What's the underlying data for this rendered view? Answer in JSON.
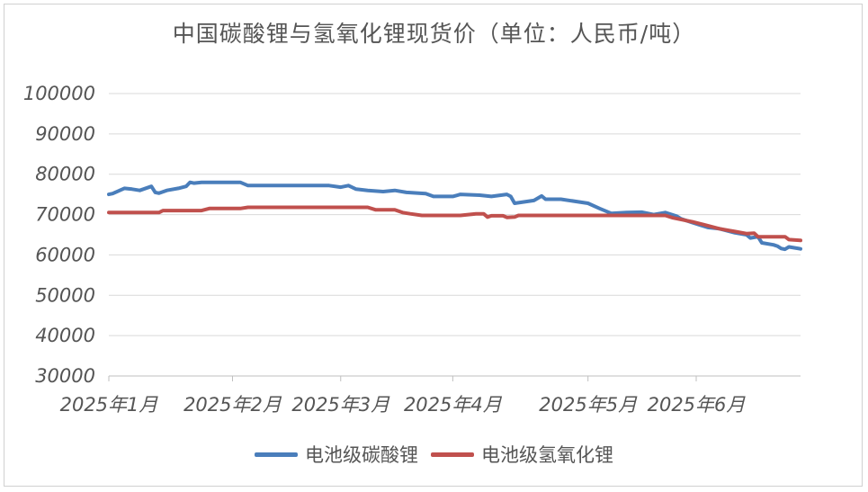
{
  "chart_data": {
    "type": "line",
    "title": "中国碳酸锂与氢氧化锂现货价（单位：人民币/吨）",
    "xlabel": "",
    "ylabel": "",
    "ylim": [
      30000,
      100000
    ],
    "yticks": [
      100000,
      90000,
      80000,
      70000,
      60000,
      50000,
      40000,
      30000
    ],
    "xticks": [
      "2025年1月",
      "2025年2月",
      "2025年3月",
      "2025年4月",
      "2025年5月",
      "2025年6月"
    ],
    "xtick_dates": [
      "2025-01-02",
      "2025-02-03",
      "2025-03-03",
      "2025-04-01",
      "2025-05-06",
      "2025-06-03"
    ],
    "x_range": [
      "2025-01-02",
      "2025-06-30"
    ],
    "grid": true,
    "legend_position": "bottom",
    "series": [
      {
        "name": "电池级碳酸锂",
        "color": "#4a7ebb",
        "points": [
          [
            "2025-01-02",
            75000
          ],
          [
            "2025-01-03",
            75200
          ],
          [
            "2025-01-06",
            76500
          ],
          [
            "2025-01-08",
            76300
          ],
          [
            "2025-01-10",
            76000
          ],
          [
            "2025-01-13",
            77000
          ],
          [
            "2025-01-14",
            75500
          ],
          [
            "2025-01-15",
            75300
          ],
          [
            "2025-01-17",
            76000
          ],
          [
            "2025-01-20",
            76500
          ],
          [
            "2025-01-22",
            77000
          ],
          [
            "2025-01-23",
            78000
          ],
          [
            "2025-01-24",
            77800
          ],
          [
            "2025-01-26",
            78000
          ],
          [
            "2025-02-05",
            78000
          ],
          [
            "2025-02-07",
            77200
          ],
          [
            "2025-02-28",
            77200
          ],
          [
            "2025-03-03",
            76800
          ],
          [
            "2025-03-05",
            77200
          ],
          [
            "2025-03-07",
            76300
          ],
          [
            "2025-03-10",
            76000
          ],
          [
            "2025-03-14",
            75700
          ],
          [
            "2025-03-17",
            76000
          ],
          [
            "2025-03-20",
            75500
          ],
          [
            "2025-03-25",
            75200
          ],
          [
            "2025-03-27",
            74500
          ],
          [
            "2025-03-31",
            74500
          ],
          [
            "2025-04-01",
            74500
          ],
          [
            "2025-04-03",
            75000
          ],
          [
            "2025-04-08",
            74800
          ],
          [
            "2025-04-11",
            74500
          ],
          [
            "2025-04-15",
            75000
          ],
          [
            "2025-04-16",
            74500
          ],
          [
            "2025-04-17",
            72800
          ],
          [
            "2025-04-22",
            73500
          ],
          [
            "2025-04-24",
            74600
          ],
          [
            "2025-04-25",
            73800
          ],
          [
            "2025-04-29",
            73800
          ],
          [
            "2025-05-06",
            72800
          ],
          [
            "2025-05-09",
            71500
          ],
          [
            "2025-05-12",
            70300
          ],
          [
            "2025-05-16",
            70500
          ],
          [
            "2025-05-20",
            70600
          ],
          [
            "2025-05-23",
            70000
          ],
          [
            "2025-05-26",
            70500
          ],
          [
            "2025-05-29",
            69600
          ],
          [
            "2025-05-30",
            69000
          ],
          [
            "2025-06-02",
            68000
          ],
          [
            "2025-06-04",
            67400
          ],
          [
            "2025-06-06",
            66800
          ],
          [
            "2025-06-09",
            66500
          ],
          [
            "2025-06-11",
            66000
          ],
          [
            "2025-06-13",
            65500
          ],
          [
            "2025-06-16",
            65000
          ],
          [
            "2025-06-17",
            64200
          ],
          [
            "2025-06-19",
            64500
          ],
          [
            "2025-06-20",
            63000
          ],
          [
            "2025-06-23",
            62500
          ],
          [
            "2025-06-24",
            62200
          ],
          [
            "2025-06-25",
            61600
          ],
          [
            "2025-06-26",
            61400
          ],
          [
            "2025-06-27",
            62000
          ],
          [
            "2025-06-30",
            61500
          ]
        ]
      },
      {
        "name": "电池级氢氧化锂",
        "color": "#c0504d",
        "points": [
          [
            "2025-01-02",
            70500
          ],
          [
            "2025-01-15",
            70500
          ],
          [
            "2025-01-16",
            71000
          ],
          [
            "2025-01-26",
            71000
          ],
          [
            "2025-01-28",
            71500
          ],
          [
            "2025-02-05",
            71500
          ],
          [
            "2025-02-07",
            71800
          ],
          [
            "2025-03-10",
            71800
          ],
          [
            "2025-03-12",
            71200
          ],
          [
            "2025-03-17",
            71200
          ],
          [
            "2025-03-19",
            70500
          ],
          [
            "2025-03-21",
            70200
          ],
          [
            "2025-03-24",
            69800
          ],
          [
            "2025-04-03",
            69800
          ],
          [
            "2025-04-07",
            70200
          ],
          [
            "2025-04-09",
            70200
          ],
          [
            "2025-04-10",
            69400
          ],
          [
            "2025-04-11",
            69700
          ],
          [
            "2025-04-14",
            69700
          ],
          [
            "2025-04-15",
            69300
          ],
          [
            "2025-04-17",
            69400
          ],
          [
            "2025-04-18",
            69800
          ],
          [
            "2025-05-26",
            69800
          ],
          [
            "2025-05-28",
            69200
          ],
          [
            "2025-06-02",
            68200
          ],
          [
            "2025-06-05",
            67500
          ],
          [
            "2025-06-09",
            66500
          ],
          [
            "2025-06-13",
            65800
          ],
          [
            "2025-06-16",
            65300
          ],
          [
            "2025-06-18",
            65400
          ],
          [
            "2025-06-19",
            64500
          ],
          [
            "2025-06-26",
            64500
          ],
          [
            "2025-06-27",
            63800
          ],
          [
            "2025-06-30",
            63600
          ]
        ]
      }
    ]
  }
}
